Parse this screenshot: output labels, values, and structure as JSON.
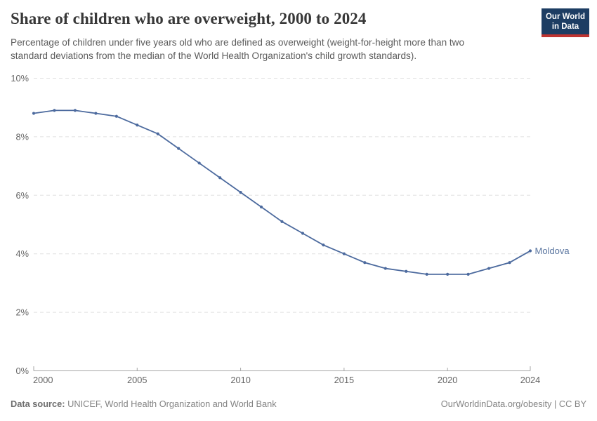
{
  "header": {
    "title": "Share of children who are overweight, 2000 to 2024",
    "subtitle_lines": [
      "Percentage of children under five years old who are defined as overweight (weight-for-height more than two",
      "standard deviations from the median of the World Health Organization's child growth standards)."
    ],
    "logo": {
      "line1": "Our World",
      "line2": "in Data"
    }
  },
  "chart_data": {
    "type": "line",
    "title": "Share of children who are overweight, 2000 to 2024",
    "x": [
      2000,
      2001,
      2002,
      2003,
      2004,
      2005,
      2006,
      2007,
      2008,
      2009,
      2010,
      2011,
      2012,
      2013,
      2014,
      2015,
      2016,
      2017,
      2018,
      2019,
      2020,
      2021,
      2022,
      2023,
      2024
    ],
    "series": [
      {
        "name": "Moldova",
        "color": "#4c6a9e",
        "values": [
          8.8,
          8.9,
          8.9,
          8.8,
          8.7,
          8.4,
          8.1,
          7.6,
          7.1,
          6.6,
          6.1,
          5.6,
          5.1,
          4.7,
          4.3,
          4.0,
          3.7,
          3.5,
          3.4,
          3.3,
          3.3,
          3.3,
          3.5,
          3.7,
          4.1
        ]
      }
    ],
    "xlabel": "",
    "ylabel": "",
    "xlim": [
      2000,
      2024
    ],
    "ylim": [
      0,
      10
    ],
    "xticks": [
      2000,
      2005,
      2010,
      2015,
      2020,
      2024
    ],
    "yticks": [
      {
        "value": 0,
        "label": "0%"
      },
      {
        "value": 2,
        "label": "2%"
      },
      {
        "value": 4,
        "label": "4%"
      },
      {
        "value": 6,
        "label": "6%"
      },
      {
        "value": 8,
        "label": "8%"
      },
      {
        "value": 10,
        "label": "10%"
      }
    ],
    "grid": true,
    "legend": "end-of-line-label"
  },
  "footer": {
    "source_label": "Data source:",
    "source_value": " UNICEF, World Health Organization and World Bank",
    "license": "OurWorldinData.org/obesity | CC BY"
  },
  "colors": {
    "series_line": "#4c6a9e",
    "series_label": "#5b76a0",
    "brand_navy": "#1d3d63",
    "brand_red": "#bf3431",
    "gridline": "#e0e0e0",
    "axis": "#a6a6a6",
    "tick_text": "#666666"
  }
}
